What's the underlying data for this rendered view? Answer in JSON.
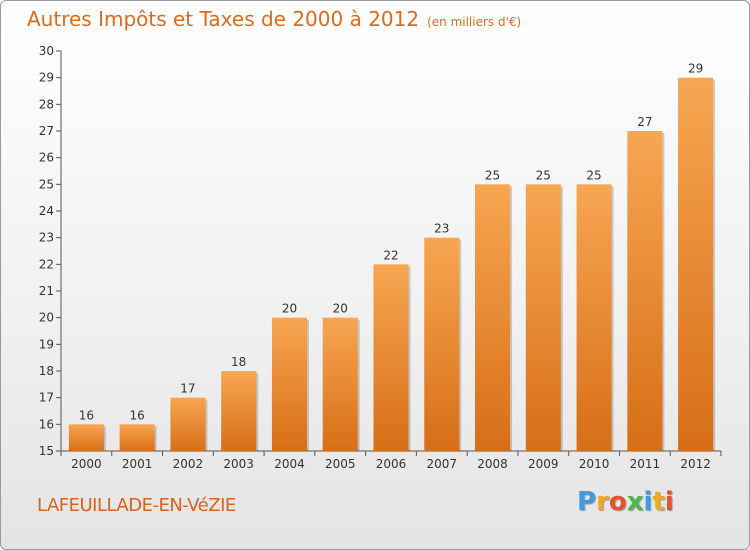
{
  "chart_data": {
    "type": "bar",
    "title": "Autres Impôts et Taxes de 2000 à 2012",
    "unit": "(en milliers d'€)",
    "categories": [
      "2000",
      "2001",
      "2002",
      "2003",
      "2004",
      "2005",
      "2006",
      "2007",
      "2008",
      "2009",
      "2010",
      "2011",
      "2012"
    ],
    "values": [
      16,
      16,
      17,
      18,
      20,
      20,
      22,
      23,
      25,
      25,
      25,
      27,
      29
    ],
    "ylim": [
      15,
      30
    ],
    "yticks": [
      15,
      16,
      17,
      18,
      19,
      20,
      21,
      22,
      23,
      24,
      25,
      26,
      27,
      28,
      29,
      30
    ],
    "grid": false,
    "bar_color_top": "#f7a652",
    "bar_color_bottom": "#d76e16"
  },
  "footer": {
    "place": "LAFEUILLADE-EN-VéZIE",
    "logo_letters": [
      "P",
      "r",
      "o",
      "x",
      "i",
      "t",
      "i"
    ],
    "logo_colors": [
      "#3a9be0",
      "#f2a81d",
      "#e8522a",
      "#4ab84a",
      "#3a9be0",
      "#f2a81d",
      "#e8522a"
    ]
  }
}
